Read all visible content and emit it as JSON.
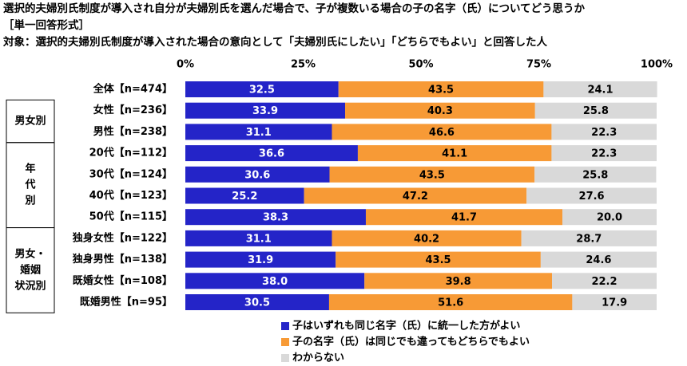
{
  "chart_data": {
    "type": "stacked-bar-horizontal",
    "title": "選択的夫婦別氏制度が導入され自分が夫婦別氏を選んだ場合で、子が複数いる場合の子の名字（氏）についてどう思うか",
    "subtitle": "［単一回答形式］",
    "note": "対象：選択的夫婦別氏制度が導入された場合の意向として「夫婦別氏にしたい」「どちらでもよい」と回答した人",
    "categories": [
      "全体【n=474】",
      "女性【n=236】",
      "男性【n=238】",
      "20代【n=112】",
      "30代【n=124】",
      "40代【n=123】",
      "50代【n=115】",
      "独身女性【n=122】",
      "独身男性【n=138】",
      "既婚女性【n=108】",
      "既婚男性【n=95】"
    ],
    "groups": [
      {
        "label": [
          "男女別"
        ],
        "first": 1,
        "last": 2
      },
      {
        "label": [
          "年",
          "代",
          "別"
        ],
        "first": 3,
        "last": 6
      },
      {
        "label": [
          "男女・",
          "婚姻",
          "状況別"
        ],
        "first": 7,
        "last": 10
      }
    ],
    "series": [
      {
        "name": "子はいずれも同じ名字（氏）に統一した方がよい",
        "color": "#2424c8",
        "text_color": "#ffffff",
        "values": [
          32.5,
          33.9,
          31.1,
          36.6,
          30.6,
          25.2,
          38.3,
          31.1,
          31.9,
          38.0,
          30.5
        ],
        "value_labels": [
          "32.5",
          "33.9",
          "31.1",
          "36.6",
          "30.6",
          "25.2",
          "38.3",
          "31.1",
          "31.9",
          "38.0",
          "30.5"
        ]
      },
      {
        "name": "子の名字（氏）は同じでも違ってもどちらでもよい",
        "color": "#f79a36",
        "text_color": "#000000",
        "values": [
          43.5,
          40.3,
          46.6,
          41.1,
          43.5,
          47.2,
          41.7,
          40.2,
          43.5,
          39.8,
          51.6
        ],
        "value_labels": [
          "43.5",
          "40.3",
          "46.6",
          "41.1",
          "43.5",
          "47.2",
          "41.7",
          "40.2",
          "43.5",
          "39.8",
          "51.6"
        ]
      },
      {
        "name": "わからない",
        "color": "#d9d9d9",
        "text_color": "#000000",
        "values": [
          24.1,
          25.8,
          22.3,
          22.3,
          25.8,
          27.6,
          20.0,
          28.7,
          24.6,
          22.2,
          17.9
        ],
        "value_labels": [
          "24.1",
          "25.8",
          "22.3",
          "22.3",
          "25.8",
          "27.6",
          "20.0",
          "28.7",
          "24.6",
          "22.2",
          "17.9"
        ]
      }
    ],
    "xlim": [
      0,
      100
    ],
    "xticks": [
      {
        "value": 0,
        "label": "0%"
      },
      {
        "value": 25,
        "label": "25%"
      },
      {
        "value": 50,
        "label": "50%"
      },
      {
        "value": 75,
        "label": "75%"
      },
      {
        "value": 100,
        "label": "100%"
      }
    ]
  }
}
